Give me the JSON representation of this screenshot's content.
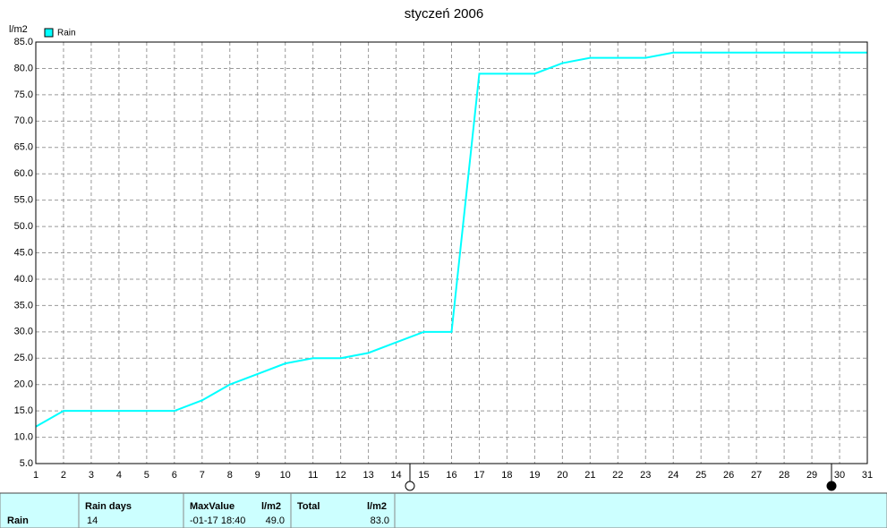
{
  "chart_data": {
    "type": "line",
    "title": "styczeń 2006",
    "y_label": "l/m2",
    "x": [
      1,
      2,
      3,
      4,
      5,
      6,
      7,
      8,
      9,
      10,
      11,
      12,
      13,
      14,
      15,
      16,
      17,
      18,
      19,
      20,
      21,
      22,
      23,
      24,
      25,
      26,
      27,
      28,
      29,
      30,
      31
    ],
    "series": [
      {
        "name": "Rain",
        "color": "#00ffff",
        "values": [
          12,
          15,
          15,
          15,
          15,
          15,
          17,
          20,
          22,
          24,
          25,
          25,
          26,
          28,
          30,
          30,
          79,
          79,
          79,
          81,
          82,
          82,
          82,
          83,
          83,
          83,
          83,
          83,
          83,
          83,
          83
        ]
      }
    ],
    "xlim": [
      1,
      31
    ],
    "xticks": [
      1,
      2,
      3,
      4,
      5,
      6,
      7,
      8,
      9,
      10,
      11,
      12,
      13,
      14,
      15,
      16,
      17,
      18,
      19,
      20,
      21,
      22,
      23,
      24,
      25,
      26,
      27,
      28,
      29,
      30,
      31
    ],
    "ylim": [
      5,
      85
    ],
    "yticks": [
      {
        "value": 5,
        "label": "5.0"
      },
      {
        "value": 10,
        "label": "10.0"
      },
      {
        "value": 15,
        "label": "15.0"
      },
      {
        "value": 20,
        "label": "20.0"
      },
      {
        "value": 25,
        "label": "25.0"
      },
      {
        "value": 30,
        "label": "30.0"
      },
      {
        "value": 35,
        "label": "35.0"
      },
      {
        "value": 40,
        "label": "40.0"
      },
      {
        "value": 45,
        "label": "45.0"
      },
      {
        "value": 50,
        "label": "50.0"
      },
      {
        "value": 55,
        "label": "55.0"
      },
      {
        "value": 60,
        "label": "60.0"
      },
      {
        "value": 65,
        "label": "65.0"
      },
      {
        "value": 70,
        "label": "70.0"
      },
      {
        "value": 75,
        "label": "75.0"
      },
      {
        "value": 80,
        "label": "80.0"
      },
      {
        "value": 85,
        "label": "85.0"
      }
    ],
    "grid": true,
    "legend": "top-left"
  },
  "stats": {
    "row_label": "Rain",
    "rain_days": {
      "header": "Rain days",
      "value": "14"
    },
    "max_value": {
      "header": "MaxValue",
      "unit": "l/m2",
      "time": "-01-17 18:40",
      "value": "49.0"
    },
    "total": {
      "header": "Total",
      "unit": "l/m2",
      "value": "83.0"
    }
  }
}
